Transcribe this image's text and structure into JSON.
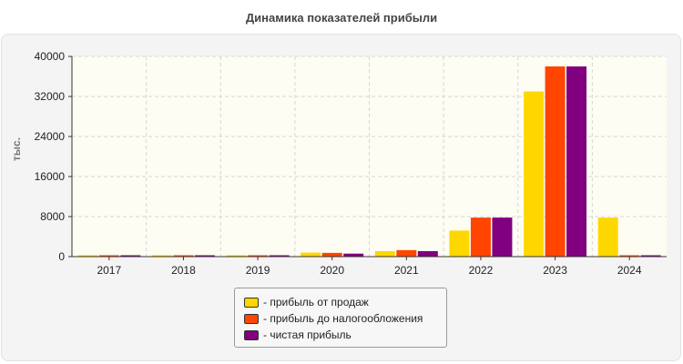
{
  "chart_data": {
    "type": "bar",
    "title": "Динамика показателей прибыли",
    "ylabel": "тыс.",
    "xlabel": "",
    "categories": [
      "2017",
      "2018",
      "2019",
      "2020",
      "2021",
      "2022",
      "2023",
      "2024"
    ],
    "ylim": [
      0,
      40000
    ],
    "yticks": [
      0,
      8000,
      16000,
      24000,
      32000,
      40000
    ],
    "grid": true,
    "legend_position": "bottom",
    "series": [
      {
        "name": "- прибыль от продаж",
        "color": "#FFD700",
        "values": [
          150,
          150,
          200,
          800,
          1100,
          5200,
          33000,
          7800
        ]
      },
      {
        "name": "- прибыль до налогообложения",
        "color": "#FF4500",
        "values": [
          150,
          200,
          250,
          750,
          1300,
          7800,
          38000,
          100
        ]
      },
      {
        "name": "- чистая прибыль",
        "color": "#800080",
        "values": [
          120,
          150,
          200,
          600,
          1100,
          7800,
          38000,
          100
        ]
      }
    ]
  }
}
